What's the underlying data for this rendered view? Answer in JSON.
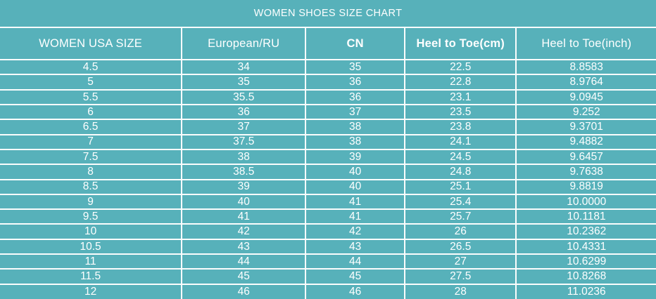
{
  "title": "WOMEN SHOES SIZE CHART",
  "colors": {
    "background": "#57b1ba",
    "grid": "#fbfdfd",
    "text": "#ffffff"
  },
  "chart_data": {
    "type": "table",
    "title": "WOMEN SHOES SIZE CHART",
    "columns": [
      "WOMEN USA SIZE",
      "European/RU",
      "CN",
      "Heel to Toe(cm)",
      "Heel to Toe(inch)"
    ],
    "rows": [
      [
        "4.5",
        "34",
        "35",
        "22.5",
        "8.8583"
      ],
      [
        "5",
        "35",
        "36",
        "22.8",
        "8.9764"
      ],
      [
        "5.5",
        "35.5",
        "36",
        "23.1",
        "9.0945"
      ],
      [
        "6",
        "36",
        "37",
        "23.5",
        "9.252"
      ],
      [
        "6.5",
        "37",
        "38",
        "23.8",
        "9.3701"
      ],
      [
        "7",
        "37.5",
        "38",
        "24.1",
        "9.4882"
      ],
      [
        "7.5",
        "38",
        "39",
        "24.5",
        "9.6457"
      ],
      [
        "8",
        "38.5",
        "40",
        "24.8",
        "9.7638"
      ],
      [
        "8.5",
        "39",
        "40",
        "25.1",
        "9.8819"
      ],
      [
        "9",
        "40",
        "41",
        "25.4",
        "10.0000"
      ],
      [
        "9.5",
        "41",
        "41",
        "25.7",
        "10.1181"
      ],
      [
        "10",
        "42",
        "42",
        "26",
        "10.2362"
      ],
      [
        "10.5",
        "43",
        "43",
        "26.5",
        "10.4331"
      ],
      [
        "11",
        "44",
        "44",
        "27",
        "10.6299"
      ],
      [
        "11.5",
        "45",
        "45",
        "27.5",
        "10.8268"
      ],
      [
        "12",
        "46",
        "46",
        "28",
        "11.0236"
      ]
    ]
  }
}
